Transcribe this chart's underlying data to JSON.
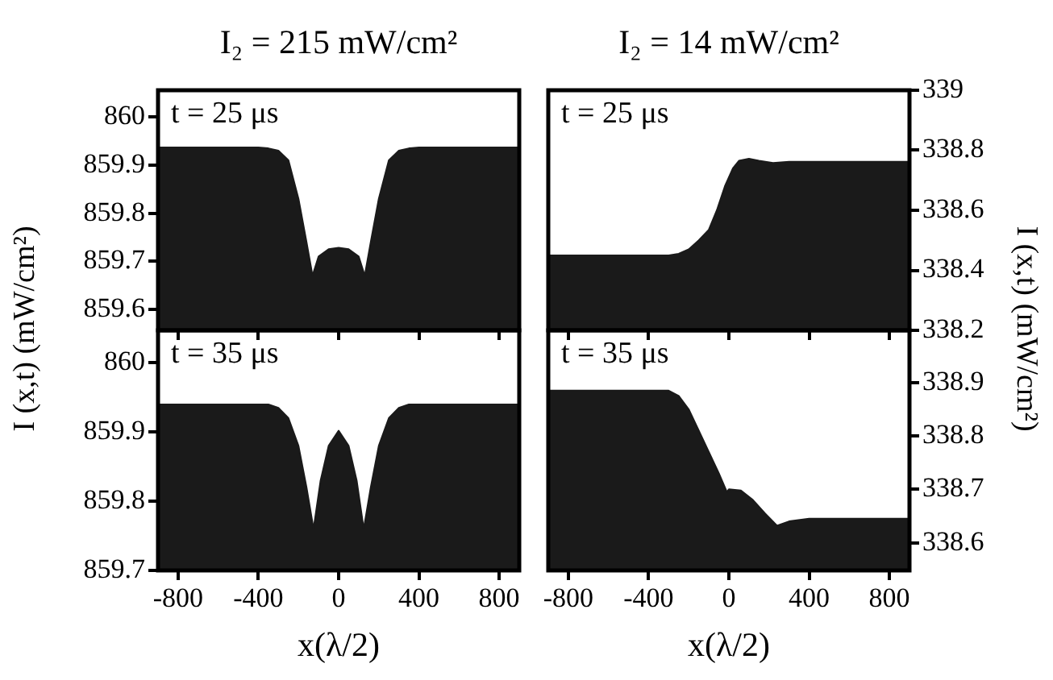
{
  "chart_data": [
    {
      "type": "area",
      "title": "I₂ = 215 mW/cm²",
      "ylabel": "I (x,t) (mW/cm²)",
      "annotations": [
        "t = 25 μs"
      ],
      "xlim": [
        -900,
        900
      ],
      "xticks": [
        -800,
        -400,
        0,
        400,
        800
      ],
      "ylim": [
        859.556,
        860.056
      ],
      "yticks": [
        859.6,
        859.7,
        859.8,
        859.9,
        860
      ],
      "tick_labels": "y",
      "grid": false,
      "legend": false,
      "series": [
        {
          "color": "#1a1a1a",
          "x": [
            -900,
            -400,
            -350,
            -300,
            -250,
            -200,
            -160,
            -130,
            -100,
            -50,
            0,
            50,
            100,
            130,
            160,
            200,
            250,
            300,
            350,
            400,
            900
          ],
          "values": [
            859.937,
            859.937,
            859.935,
            859.93,
            859.91,
            859.83,
            859.74,
            859.67,
            859.71,
            859.725,
            859.728,
            859.725,
            859.71,
            859.67,
            859.74,
            859.83,
            859.91,
            859.93,
            859.935,
            859.937,
            859.937
          ]
        }
      ]
    },
    {
      "type": "area",
      "title": "I₂ = 14 mW/cm²",
      "ylabel": "I (x,t) (mW/cm²)",
      "annotations": [
        "t = 25 μs"
      ],
      "xlim": [
        -900,
        900
      ],
      "xticks": [
        -800,
        -400,
        0,
        400,
        800
      ],
      "ylim": [
        338.2,
        339
      ],
      "yticks": [
        338.2,
        338.4,
        338.6,
        338.8,
        339
      ],
      "tick_labels": "y",
      "grid": false,
      "legend": false,
      "series": [
        {
          "color": "#1a1a1a",
          "x": [
            -900,
            -300,
            -250,
            -200,
            -150,
            -100,
            -60,
            -20,
            20,
            50,
            100,
            150,
            220,
            300,
            900
          ],
          "values": [
            338.45,
            338.45,
            338.455,
            338.47,
            338.5,
            338.535,
            338.6,
            338.68,
            338.74,
            338.765,
            338.772,
            338.765,
            338.758,
            338.762,
            338.762
          ]
        }
      ]
    },
    {
      "type": "area",
      "xlabel": "x(λ/2)",
      "annotations": [
        "t = 35 μs"
      ],
      "xlim": [
        -900,
        900
      ],
      "xticks": [
        -800,
        -400,
        0,
        400,
        800
      ],
      "ylim": [
        859.7,
        860.047
      ],
      "yticks": [
        859.7,
        859.8,
        859.9,
        860
      ],
      "grid": false,
      "legend": false,
      "series": [
        {
          "color": "#1a1a1a",
          "x": [
            -900,
            -350,
            -300,
            -250,
            -200,
            -160,
            -125,
            -90,
            -50,
            0,
            50,
            90,
            125,
            160,
            200,
            250,
            300,
            350,
            900
          ],
          "values": [
            859.94,
            859.94,
            859.935,
            859.92,
            859.88,
            859.82,
            859.76,
            859.83,
            859.88,
            859.902,
            859.88,
            859.83,
            859.76,
            859.82,
            859.88,
            859.92,
            859.935,
            859.94,
            859.94
          ]
        }
      ]
    },
    {
      "type": "area",
      "xlabel": "x(λ/2)",
      "annotations": [
        "t = 35 μs"
      ],
      "xlim": [
        -900,
        900
      ],
      "xticks": [
        -800,
        -400,
        0,
        400,
        800
      ],
      "ylim": [
        338.548,
        338.998
      ],
      "yticks": [
        338.6,
        338.7,
        338.8,
        338.9
      ],
      "grid": false,
      "legend": false,
      "series": [
        {
          "color": "#1a1a1a",
          "x": [
            -900,
            -300,
            -250,
            -200,
            -150,
            -100,
            -50,
            -10,
            0,
            60,
            120,
            180,
            240,
            300,
            400,
            900
          ],
          "values": [
            338.885,
            338.885,
            338.875,
            338.85,
            338.81,
            338.77,
            338.73,
            338.695,
            338.7,
            338.698,
            338.68,
            338.655,
            338.632,
            338.64,
            338.645,
            338.645
          ]
        }
      ]
    }
  ]
}
